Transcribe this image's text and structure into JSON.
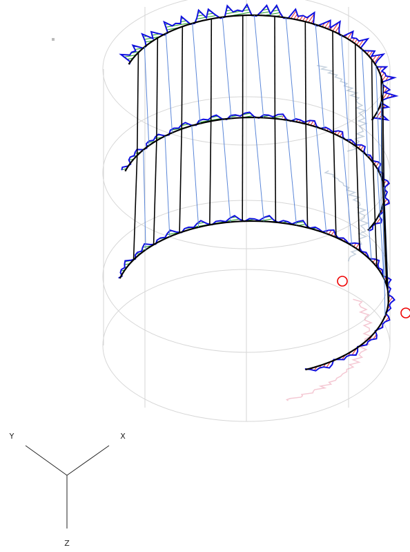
{
  "axes": {
    "y_label": "Y",
    "x_label": "X",
    "z_label": "Z"
  }
}
